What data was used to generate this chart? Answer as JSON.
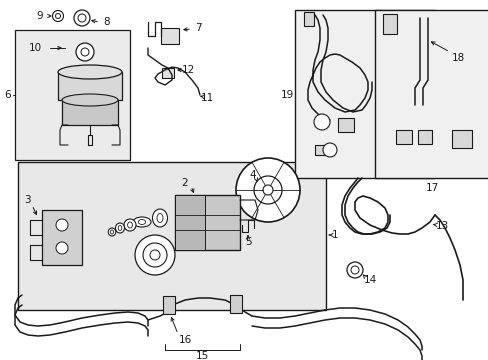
{
  "bg_color": "#ffffff",
  "line_color": "#1a1a1a",
  "fig_bg": "#ffffff",
  "figsize": [
    4.89,
    3.6
  ],
  "dpi": 100,
  "label_fs": 7.5,
  "small_fs": 6.5
}
